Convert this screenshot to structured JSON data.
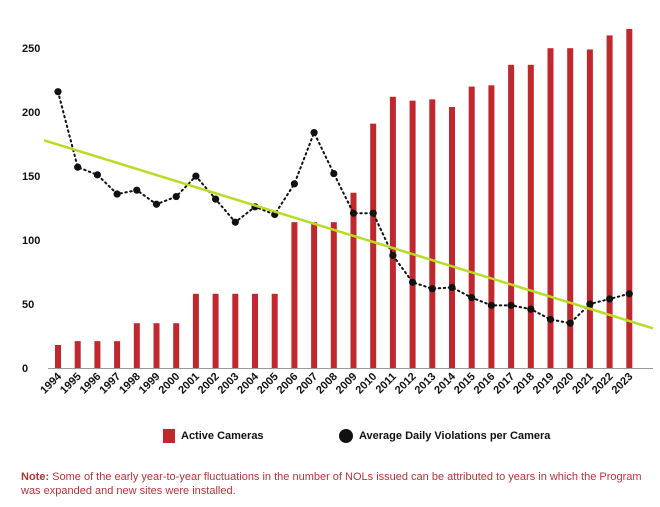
{
  "chart_data": {
    "type": "bar",
    "categories": [
      "1994",
      "1995",
      "1996",
      "1997",
      "1998",
      "1999",
      "2000",
      "2001",
      "2002",
      "2003",
      "2004",
      "2005",
      "2006",
      "2007",
      "2008",
      "2009",
      "2010",
      "2011",
      "2012",
      "2013",
      "2014",
      "2015",
      "2016",
      "2017",
      "2018",
      "2019",
      "2020",
      "2021",
      "2022",
      "2023"
    ],
    "series": [
      {
        "name": "Active Cameras",
        "type": "bar",
        "color": "#c0282d",
        "values": [
          18,
          21,
          21,
          21,
          35,
          35,
          35,
          58,
          58,
          58,
          58,
          58,
          114,
          114,
          114,
          137,
          191,
          212,
          209,
          210,
          204,
          220,
          221,
          237,
          237,
          250,
          250,
          249,
          260,
          265
        ]
      },
      {
        "name": "Average Daily Violations per Camera",
        "type": "line",
        "style": "dotted",
        "color": "#111111",
        "values": [
          216,
          157,
          151,
          136,
          139,
          128,
          134,
          150,
          132,
          114,
          126,
          120,
          144,
          184,
          152,
          121,
          121,
          88,
          67,
          62,
          63,
          55,
          49,
          49,
          46,
          38,
          35,
          50,
          54,
          58
        ]
      }
    ],
    "trendline": {
      "color": "#b8dc25",
      "start": 178,
      "end": 31
    },
    "ylim": [
      0,
      265
    ],
    "yticks": [
      0,
      50,
      100,
      150,
      200,
      250
    ],
    "grid": false,
    "legend_position": "bottom",
    "title": "",
    "xlabel": "",
    "ylabel": ""
  },
  "legend": {
    "cameras_label": "Active Cameras",
    "violations_label": "Average Daily Violations per Camera"
  },
  "note": {
    "label": "Note:",
    "text": " Some of the early year-to-year fluctuations in the number of NOLs issued can be attributed to years in which the Program was expanded and new sites were installed."
  }
}
